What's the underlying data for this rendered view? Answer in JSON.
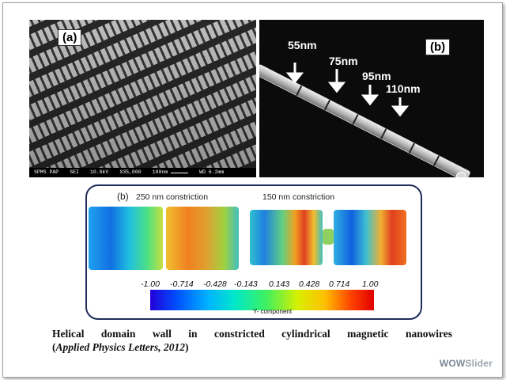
{
  "panel_a": {
    "label": "(a)",
    "sem_info": [
      "SPMS PAP",
      "SEI",
      "10.0kV",
      "X35,000",
      "100nm",
      "WD 6.2mm"
    ]
  },
  "panel_b": {
    "label": "(b)",
    "arrows": [
      "55nm",
      "75nm",
      "95nm",
      "110nm"
    ]
  },
  "simulation": {
    "label": "(b)",
    "left_title": "250 nm constriction",
    "right_title": "150 nm constriction",
    "ticks": [
      "-1.00",
      "-0.714",
      "-0.428",
      "-0.143",
      "0.143",
      "0.428",
      "0.714",
      "1.00"
    ],
    "colorbar_label": "Y- component"
  },
  "caption": {
    "line1_words": [
      "Helical",
      "domain",
      "wall",
      "in",
      "constricted",
      "cylindrical",
      "magnetic",
      "nanowires"
    ],
    "line2_open": "(",
    "line2_italic": "Applied Physics Letters, 2012",
    "line2_close": ")"
  },
  "watermark": {
    "part1": "WOW",
    "part2": "Slider"
  }
}
